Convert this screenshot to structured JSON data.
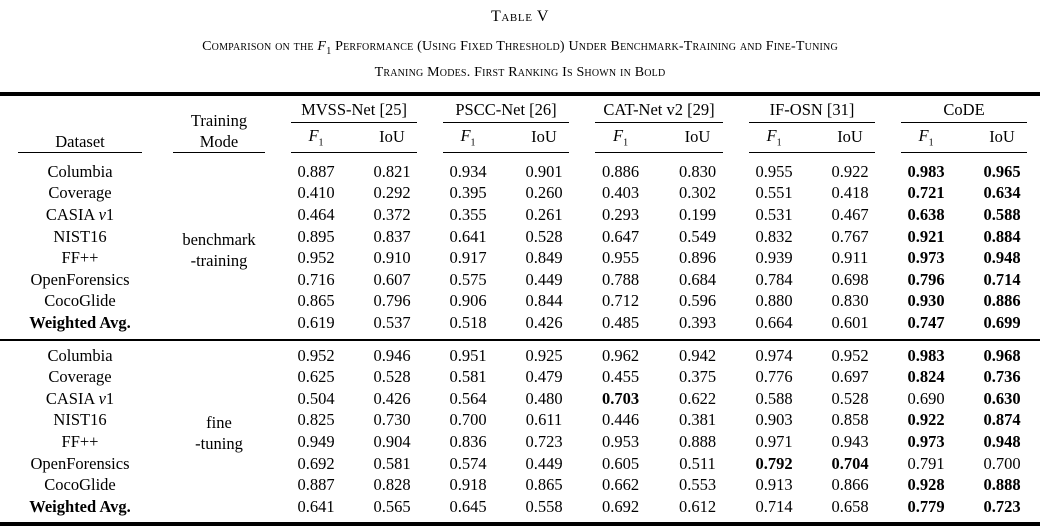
{
  "title": "Table V",
  "caption": {
    "line1_pre": "Comparison on the ",
    "f_label": "F",
    "f_sub": "1",
    "line1_post": " Performance (Using Fixed Threshold) Under Benchmark-Training and Fine-Tuning",
    "line2": "Traning Modes. First Ranking Is Shown in Bold"
  },
  "header": {
    "dataset": "Dataset",
    "training_mode_line1": "Training",
    "training_mode_line2": "Mode",
    "methods": [
      "MVSS-Net [25]",
      "PSCC-Net [26]",
      "CAT-Net v2 [29]",
      "IF-OSN [31]",
      "CoDE"
    ],
    "metric_f": "F",
    "metric_f_sub": "1",
    "metric_iou": "IoU"
  },
  "blocks": [
    {
      "mode_line1": "benchmark",
      "mode_line2": "-training",
      "rows": [
        {
          "dataset": [
            {
              "t": "Columbia"
            }
          ],
          "values": [
            "0.887",
            "0.821",
            "0.934",
            "0.901",
            "0.886",
            "0.830",
            "0.955",
            "0.922",
            "0.983",
            "0.965"
          ],
          "bold": [
            8,
            9
          ]
        },
        {
          "dataset": [
            {
              "t": "Coverage"
            }
          ],
          "values": [
            "0.410",
            "0.292",
            "0.395",
            "0.260",
            "0.403",
            "0.302",
            "0.551",
            "0.418",
            "0.721",
            "0.634"
          ],
          "bold": [
            8,
            9
          ]
        },
        {
          "dataset": [
            {
              "t": "CASIA "
            },
            {
              "t": "v",
              "i": true
            },
            {
              "t": "1"
            }
          ],
          "values": [
            "0.464",
            "0.372",
            "0.355",
            "0.261",
            "0.293",
            "0.199",
            "0.531",
            "0.467",
            "0.638",
            "0.588"
          ],
          "bold": [
            8,
            9
          ]
        },
        {
          "dataset": [
            {
              "t": "NIST16"
            }
          ],
          "values": [
            "0.895",
            "0.837",
            "0.641",
            "0.528",
            "0.647",
            "0.549",
            "0.832",
            "0.767",
            "0.921",
            "0.884"
          ],
          "bold": [
            8,
            9
          ]
        },
        {
          "dataset": [
            {
              "t": "FF++"
            }
          ],
          "values": [
            "0.952",
            "0.910",
            "0.917",
            "0.849",
            "0.955",
            "0.896",
            "0.939",
            "0.911",
            "0.973",
            "0.948"
          ],
          "bold": [
            8,
            9
          ]
        },
        {
          "dataset": [
            {
              "t": "OpenForensics"
            }
          ],
          "values": [
            "0.716",
            "0.607",
            "0.575",
            "0.449",
            "0.788",
            "0.684",
            "0.784",
            "0.698",
            "0.796",
            "0.714"
          ],
          "bold": [
            8,
            9
          ]
        },
        {
          "dataset": [
            {
              "t": "CocoGlide"
            }
          ],
          "values": [
            "0.865",
            "0.796",
            "0.906",
            "0.844",
            "0.712",
            "0.596",
            "0.880",
            "0.830",
            "0.930",
            "0.886"
          ],
          "bold": [
            8,
            9
          ]
        },
        {
          "dataset": [
            {
              "t": "Weighted Avg.",
              "b": true
            }
          ],
          "values": [
            "0.619",
            "0.537",
            "0.518",
            "0.426",
            "0.485",
            "0.393",
            "0.664",
            "0.601",
            "0.747",
            "0.699"
          ],
          "bold": [
            8,
            9
          ]
        }
      ]
    },
    {
      "mode_line1": "fine",
      "mode_line2": "-tuning",
      "rows": [
        {
          "dataset": [
            {
              "t": "Columbia"
            }
          ],
          "values": [
            "0.952",
            "0.946",
            "0.951",
            "0.925",
            "0.962",
            "0.942",
            "0.974",
            "0.952",
            "0.983",
            "0.968"
          ],
          "bold": [
            8,
            9
          ]
        },
        {
          "dataset": [
            {
              "t": "Coverage"
            }
          ],
          "values": [
            "0.625",
            "0.528",
            "0.581",
            "0.479",
            "0.455",
            "0.375",
            "0.776",
            "0.697",
            "0.824",
            "0.736"
          ],
          "bold": [
            8,
            9
          ]
        },
        {
          "dataset": [
            {
              "t": "CASIA "
            },
            {
              "t": "v",
              "i": true
            },
            {
              "t": "1"
            }
          ],
          "values": [
            "0.504",
            "0.426",
            "0.564",
            "0.480",
            "0.703",
            "0.622",
            "0.588",
            "0.528",
            "0.690",
            "0.630"
          ],
          "bold": [
            4,
            9
          ]
        },
        {
          "dataset": [
            {
              "t": "NIST16"
            }
          ],
          "values": [
            "0.825",
            "0.730",
            "0.700",
            "0.611",
            "0.446",
            "0.381",
            "0.903",
            "0.858",
            "0.922",
            "0.874"
          ],
          "bold": [
            8,
            9
          ]
        },
        {
          "dataset": [
            {
              "t": "FF++"
            }
          ],
          "values": [
            "0.949",
            "0.904",
            "0.836",
            "0.723",
            "0.953",
            "0.888",
            "0.971",
            "0.943",
            "0.973",
            "0.948"
          ],
          "bold": [
            8,
            9
          ]
        },
        {
          "dataset": [
            {
              "t": "OpenForensics"
            }
          ],
          "values": [
            "0.692",
            "0.581",
            "0.574",
            "0.449",
            "0.605",
            "0.511",
            "0.792",
            "0.704",
            "0.791",
            "0.700"
          ],
          "bold": [
            6,
            7
          ]
        },
        {
          "dataset": [
            {
              "t": "CocoGlide"
            }
          ],
          "values": [
            "0.887",
            "0.828",
            "0.918",
            "0.865",
            "0.662",
            "0.553",
            "0.913",
            "0.866",
            "0.928",
            "0.888"
          ],
          "bold": [
            8,
            9
          ]
        },
        {
          "dataset": [
            {
              "t": "Weighted Avg.",
              "b": true
            }
          ],
          "values": [
            "0.641",
            "0.565",
            "0.645",
            "0.558",
            "0.692",
            "0.612",
            "0.714",
            "0.658",
            "0.779",
            "0.723"
          ],
          "bold": [
            8,
            9
          ]
        }
      ]
    }
  ]
}
